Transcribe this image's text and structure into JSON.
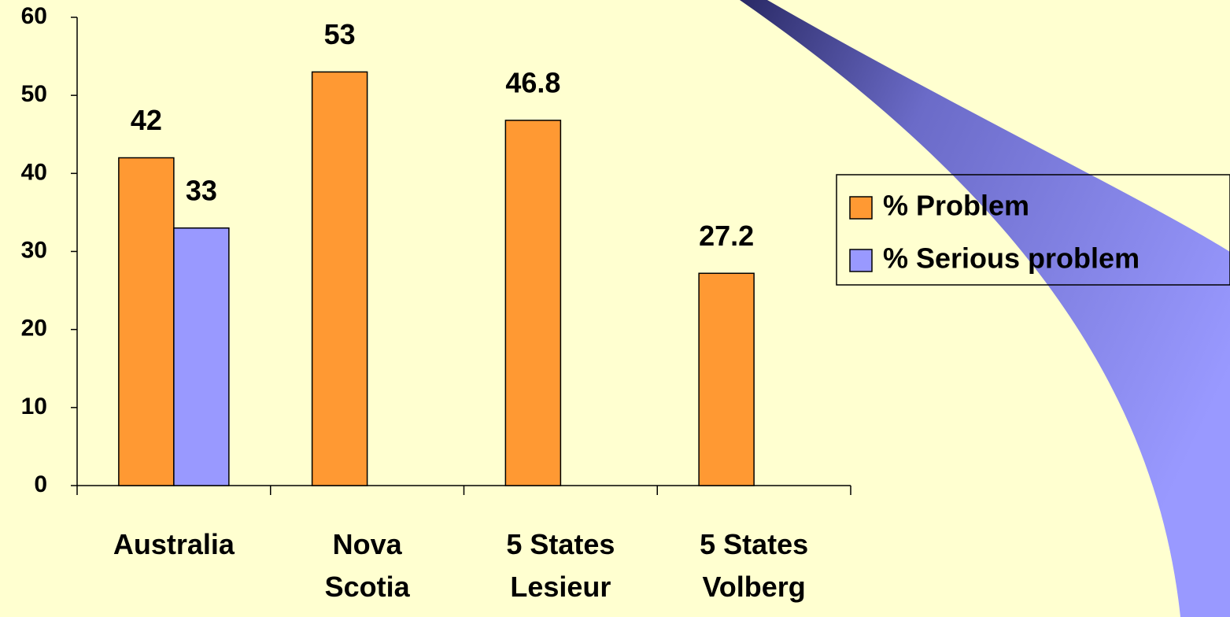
{
  "chart_data": {
    "type": "bar",
    "categories": [
      "Australia",
      "Nova\nScotia",
      "5 States\nLesieur",
      "5 States\nVolberg"
    ],
    "series": [
      {
        "name": "% Problem",
        "color": "#ff9933",
        "values": [
          42,
          53,
          46.8,
          27.2
        ]
      },
      {
        "name": "% Serious problem",
        "color": "#9999ff",
        "values": [
          33,
          null,
          null,
          null
        ]
      }
    ],
    "ylim": [
      0,
      60
    ],
    "yticks": [
      0,
      10,
      20,
      30,
      40,
      50,
      60
    ],
    "grid": false,
    "legend": "right"
  }
}
